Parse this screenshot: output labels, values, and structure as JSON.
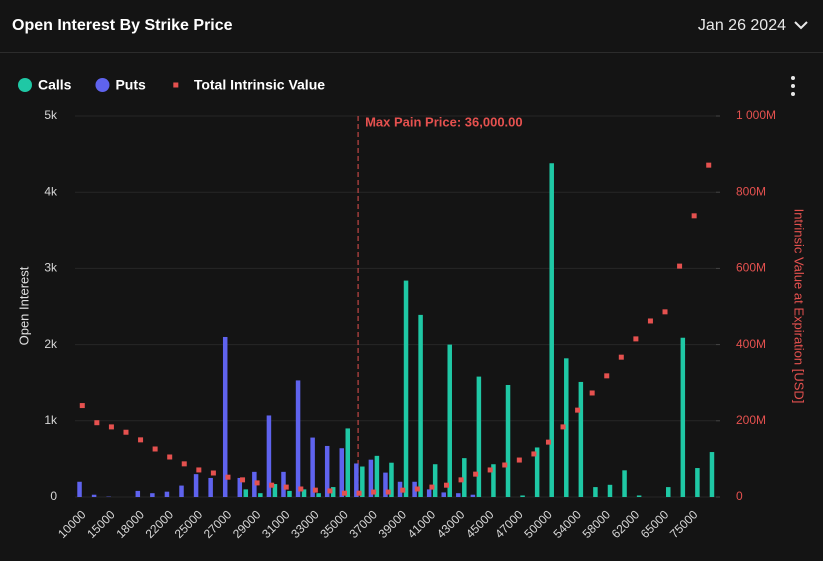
{
  "chart_data": {
    "type": "bar",
    "title": "Open Interest By Strike Price",
    "date": "Jan 26 2024",
    "annotation": "Max Pain Price: 36,000.00",
    "ylabel": "Open Interest",
    "y2label": "Intrinsic Value at Expiration [USD]",
    "categories": [
      10000,
      null,
      15000,
      null,
      18000,
      null,
      22000,
      null,
      25000,
      null,
      27000,
      null,
      29000,
      null,
      31000,
      null,
      33000,
      null,
      35000,
      null,
      37000,
      null,
      39000,
      null,
      41000,
      null,
      43000,
      null,
      45000,
      null,
      47000,
      null,
      50000,
      null,
      54000,
      null,
      58000,
      null,
      62000,
      null,
      65000,
      null,
      75000,
      null
    ],
    "series": [
      {
        "name": "Calls",
        "color": "#1fc8a5",
        "values": [
          0,
          0,
          0,
          0,
          0,
          0,
          0,
          0,
          0,
          0,
          0,
          100,
          50,
          170,
          80,
          100,
          50,
          130,
          900,
          400,
          540,
          450,
          2840,
          2390,
          430,
          2000,
          510,
          1580,
          430,
          1470,
          20,
          650,
          4380,
          1820,
          1510,
          130,
          160,
          350,
          20,
          0,
          130,
          2090,
          380,
          590
        ]
      },
      {
        "name": "Puts",
        "color": "#5f63ee",
        "values": [
          200,
          30,
          5,
          0,
          80,
          50,
          70,
          150,
          300,
          250,
          2100,
          250,
          330,
          1070,
          330,
          1530,
          780,
          670,
          640,
          440,
          490,
          320,
          200,
          200,
          100,
          60,
          50,
          30,
          0,
          0,
          0,
          0,
          0,
          0,
          0,
          0,
          0,
          0,
          0,
          0,
          0,
          0,
          0,
          0
        ]
      },
      {
        "name": "Total Intrinsic Value",
        "color": "#e5514f",
        "axis": "y2",
        "values": [
          240,
          195,
          184,
          170,
          150,
          126,
          105,
          87,
          71,
          63,
          52,
          45,
          37,
          31,
          26,
          21,
          18,
          16,
          10,
          10,
          13,
          13,
          18,
          21,
          26,
          31,
          45,
          60,
          71,
          84,
          97,
          113,
          144,
          184,
          228,
          273,
          318,
          367,
          415,
          462,
          486,
          606,
          738,
          871
        ]
      }
    ],
    "ylim": [
      0,
      5000
    ],
    "yticks": [
      0,
      {
        "value": 1000,
        "label": "1k"
      },
      {
        "value": 2000,
        "label": "2k"
      },
      {
        "value": 3000,
        "label": "3k"
      },
      {
        "value": 4000,
        "label": "4k"
      },
      {
        "value": 5000,
        "label": "5k"
      }
    ],
    "y2lim": [
      0,
      1000
    ],
    "y2ticks": [
      0,
      {
        "value": 200,
        "label": "200M"
      },
      {
        "value": 400,
        "label": "400M"
      },
      {
        "value": 600,
        "label": "600M"
      },
      {
        "value": 800,
        "label": "800M"
      },
      {
        "value": 1000,
        "label": "1 000M"
      }
    ],
    "grid": true
  }
}
